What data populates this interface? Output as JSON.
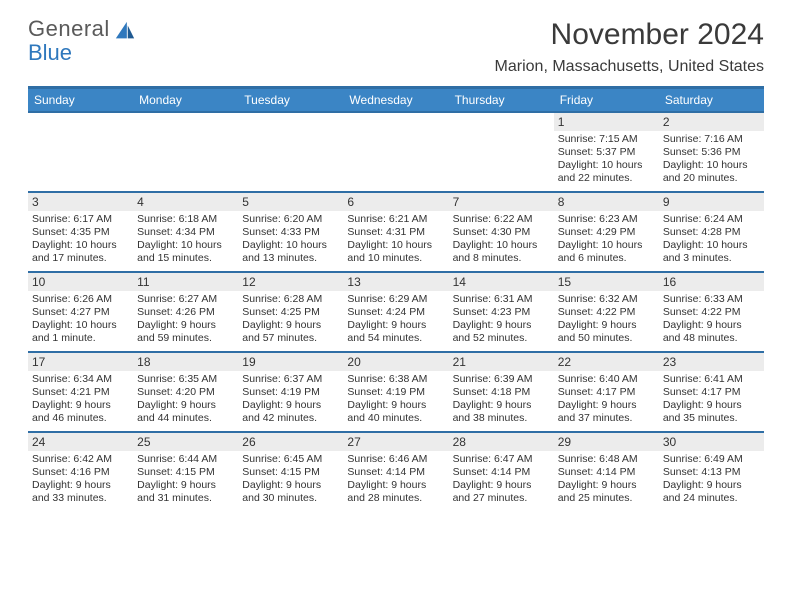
{
  "brand": {
    "word1": "General",
    "word2": "Blue"
  },
  "title": "November 2024",
  "location": "Marion, Massachusetts, United States",
  "colors": {
    "header_bg": "#3b85c5",
    "header_border": "#2f6ea5",
    "band": "#ececec",
    "text": "#333333",
    "brand_gray": "#5a5a5a",
    "brand_blue": "#2f78bd"
  },
  "dow": [
    "Sunday",
    "Monday",
    "Tuesday",
    "Wednesday",
    "Thursday",
    "Friday",
    "Saturday"
  ],
  "weeks": [
    [
      {
        "n": "",
        "sr": "",
        "ss": "",
        "d1": "",
        "d2": ""
      },
      {
        "n": "",
        "sr": "",
        "ss": "",
        "d1": "",
        "d2": ""
      },
      {
        "n": "",
        "sr": "",
        "ss": "",
        "d1": "",
        "d2": ""
      },
      {
        "n": "",
        "sr": "",
        "ss": "",
        "d1": "",
        "d2": ""
      },
      {
        "n": "",
        "sr": "",
        "ss": "",
        "d1": "",
        "d2": ""
      },
      {
        "n": "1",
        "sr": "Sunrise: 7:15 AM",
        "ss": "Sunset: 5:37 PM",
        "d1": "Daylight: 10 hours",
        "d2": "and 22 minutes."
      },
      {
        "n": "2",
        "sr": "Sunrise: 7:16 AM",
        "ss": "Sunset: 5:36 PM",
        "d1": "Daylight: 10 hours",
        "d2": "and 20 minutes."
      }
    ],
    [
      {
        "n": "3",
        "sr": "Sunrise: 6:17 AM",
        "ss": "Sunset: 4:35 PM",
        "d1": "Daylight: 10 hours",
        "d2": "and 17 minutes."
      },
      {
        "n": "4",
        "sr": "Sunrise: 6:18 AM",
        "ss": "Sunset: 4:34 PM",
        "d1": "Daylight: 10 hours",
        "d2": "and 15 minutes."
      },
      {
        "n": "5",
        "sr": "Sunrise: 6:20 AM",
        "ss": "Sunset: 4:33 PM",
        "d1": "Daylight: 10 hours",
        "d2": "and 13 minutes."
      },
      {
        "n": "6",
        "sr": "Sunrise: 6:21 AM",
        "ss": "Sunset: 4:31 PM",
        "d1": "Daylight: 10 hours",
        "d2": "and 10 minutes."
      },
      {
        "n": "7",
        "sr": "Sunrise: 6:22 AM",
        "ss": "Sunset: 4:30 PM",
        "d1": "Daylight: 10 hours",
        "d2": "and 8 minutes."
      },
      {
        "n": "8",
        "sr": "Sunrise: 6:23 AM",
        "ss": "Sunset: 4:29 PM",
        "d1": "Daylight: 10 hours",
        "d2": "and 6 minutes."
      },
      {
        "n": "9",
        "sr": "Sunrise: 6:24 AM",
        "ss": "Sunset: 4:28 PM",
        "d1": "Daylight: 10 hours",
        "d2": "and 3 minutes."
      }
    ],
    [
      {
        "n": "10",
        "sr": "Sunrise: 6:26 AM",
        "ss": "Sunset: 4:27 PM",
        "d1": "Daylight: 10 hours",
        "d2": "and 1 minute."
      },
      {
        "n": "11",
        "sr": "Sunrise: 6:27 AM",
        "ss": "Sunset: 4:26 PM",
        "d1": "Daylight: 9 hours",
        "d2": "and 59 minutes."
      },
      {
        "n": "12",
        "sr": "Sunrise: 6:28 AM",
        "ss": "Sunset: 4:25 PM",
        "d1": "Daylight: 9 hours",
        "d2": "and 57 minutes."
      },
      {
        "n": "13",
        "sr": "Sunrise: 6:29 AM",
        "ss": "Sunset: 4:24 PM",
        "d1": "Daylight: 9 hours",
        "d2": "and 54 minutes."
      },
      {
        "n": "14",
        "sr": "Sunrise: 6:31 AM",
        "ss": "Sunset: 4:23 PM",
        "d1": "Daylight: 9 hours",
        "d2": "and 52 minutes."
      },
      {
        "n": "15",
        "sr": "Sunrise: 6:32 AM",
        "ss": "Sunset: 4:22 PM",
        "d1": "Daylight: 9 hours",
        "d2": "and 50 minutes."
      },
      {
        "n": "16",
        "sr": "Sunrise: 6:33 AM",
        "ss": "Sunset: 4:22 PM",
        "d1": "Daylight: 9 hours",
        "d2": "and 48 minutes."
      }
    ],
    [
      {
        "n": "17",
        "sr": "Sunrise: 6:34 AM",
        "ss": "Sunset: 4:21 PM",
        "d1": "Daylight: 9 hours",
        "d2": "and 46 minutes."
      },
      {
        "n": "18",
        "sr": "Sunrise: 6:35 AM",
        "ss": "Sunset: 4:20 PM",
        "d1": "Daylight: 9 hours",
        "d2": "and 44 minutes."
      },
      {
        "n": "19",
        "sr": "Sunrise: 6:37 AM",
        "ss": "Sunset: 4:19 PM",
        "d1": "Daylight: 9 hours",
        "d2": "and 42 minutes."
      },
      {
        "n": "20",
        "sr": "Sunrise: 6:38 AM",
        "ss": "Sunset: 4:19 PM",
        "d1": "Daylight: 9 hours",
        "d2": "and 40 minutes."
      },
      {
        "n": "21",
        "sr": "Sunrise: 6:39 AM",
        "ss": "Sunset: 4:18 PM",
        "d1": "Daylight: 9 hours",
        "d2": "and 38 minutes."
      },
      {
        "n": "22",
        "sr": "Sunrise: 6:40 AM",
        "ss": "Sunset: 4:17 PM",
        "d1": "Daylight: 9 hours",
        "d2": "and 37 minutes."
      },
      {
        "n": "23",
        "sr": "Sunrise: 6:41 AM",
        "ss": "Sunset: 4:17 PM",
        "d1": "Daylight: 9 hours",
        "d2": "and 35 minutes."
      }
    ],
    [
      {
        "n": "24",
        "sr": "Sunrise: 6:42 AM",
        "ss": "Sunset: 4:16 PM",
        "d1": "Daylight: 9 hours",
        "d2": "and 33 minutes."
      },
      {
        "n": "25",
        "sr": "Sunrise: 6:44 AM",
        "ss": "Sunset: 4:15 PM",
        "d1": "Daylight: 9 hours",
        "d2": "and 31 minutes."
      },
      {
        "n": "26",
        "sr": "Sunrise: 6:45 AM",
        "ss": "Sunset: 4:15 PM",
        "d1": "Daylight: 9 hours",
        "d2": "and 30 minutes."
      },
      {
        "n": "27",
        "sr": "Sunrise: 6:46 AM",
        "ss": "Sunset: 4:14 PM",
        "d1": "Daylight: 9 hours",
        "d2": "and 28 minutes."
      },
      {
        "n": "28",
        "sr": "Sunrise: 6:47 AM",
        "ss": "Sunset: 4:14 PM",
        "d1": "Daylight: 9 hours",
        "d2": "and 27 minutes."
      },
      {
        "n": "29",
        "sr": "Sunrise: 6:48 AM",
        "ss": "Sunset: 4:14 PM",
        "d1": "Daylight: 9 hours",
        "d2": "and 25 minutes."
      },
      {
        "n": "30",
        "sr": "Sunrise: 6:49 AM",
        "ss": "Sunset: 4:13 PM",
        "d1": "Daylight: 9 hours",
        "d2": "and 24 minutes."
      }
    ]
  ]
}
